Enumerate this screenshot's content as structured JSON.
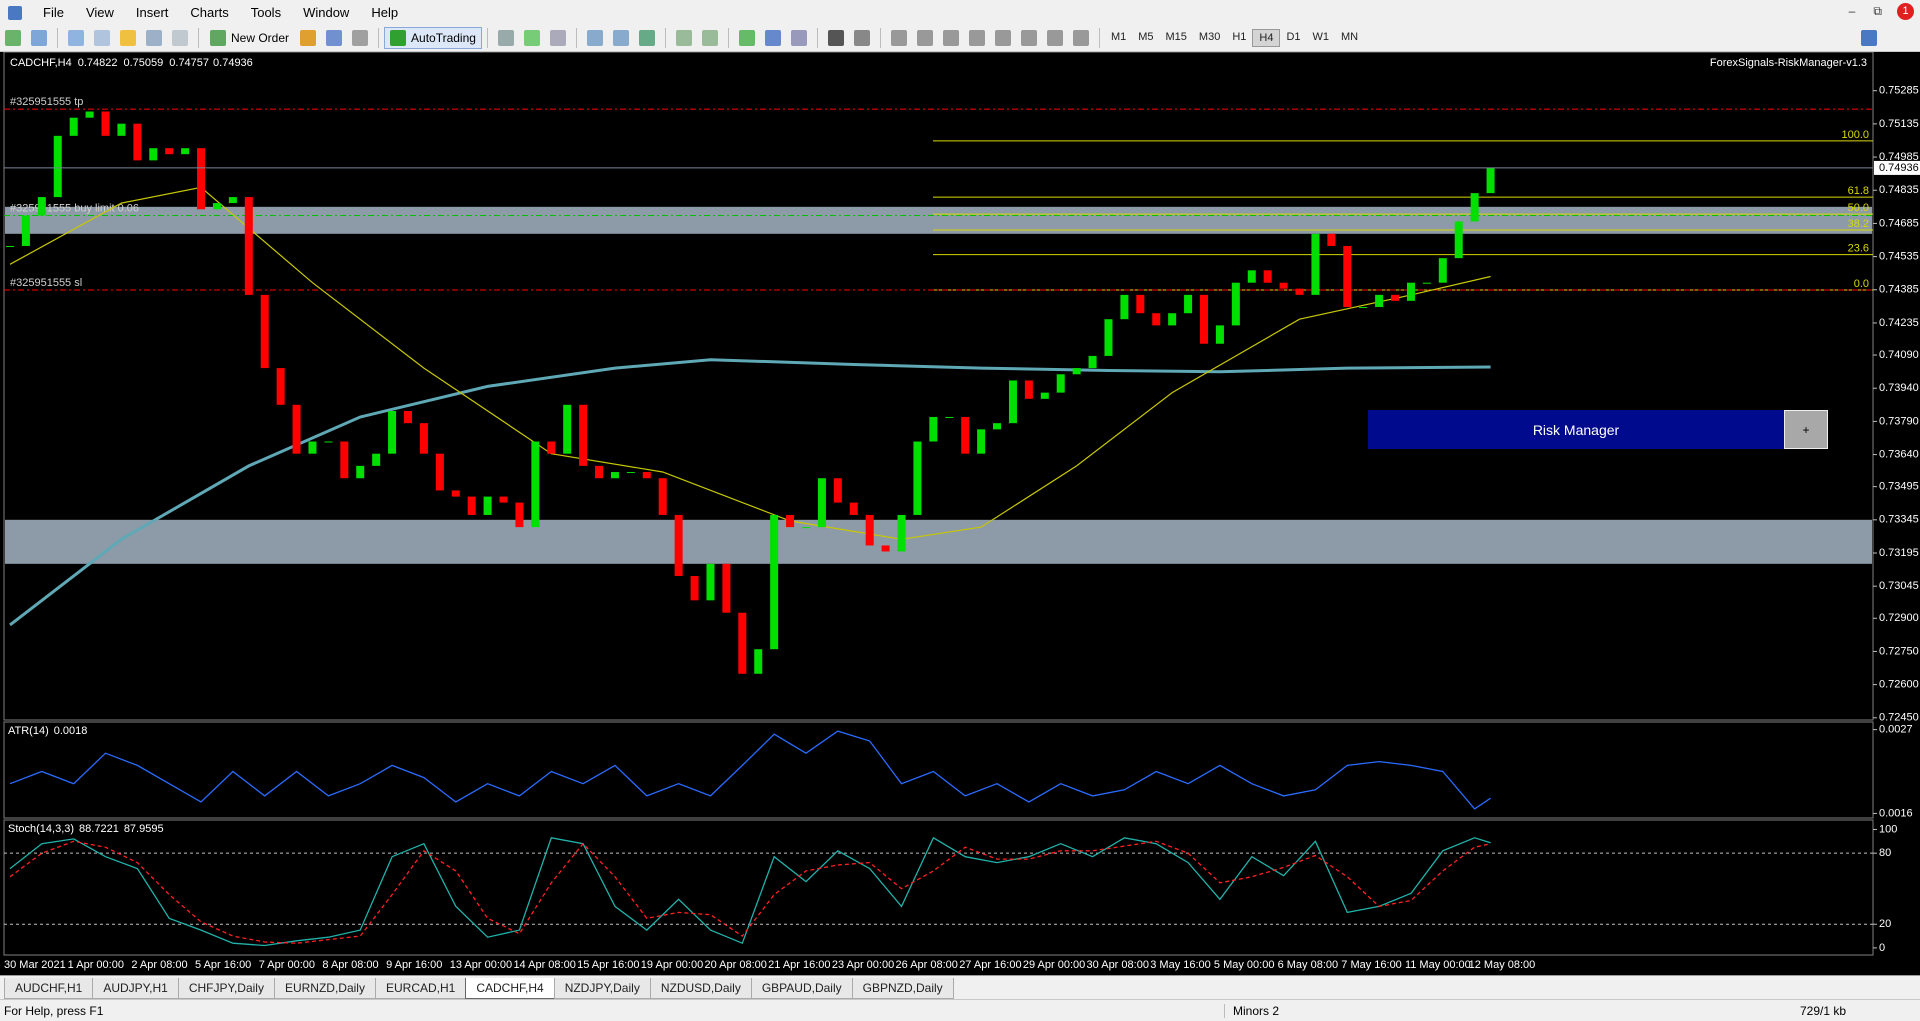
{
  "menu": [
    "File",
    "View",
    "Insert",
    "Charts",
    "Tools",
    "Window",
    "Help"
  ],
  "toolbar": {
    "new_order": "New Order",
    "autotrading": "AutoTrading",
    "timeframes": [
      "M1",
      "M5",
      "M15",
      "M30",
      "H1",
      "H4",
      "D1",
      "W1",
      "MN"
    ],
    "active_timeframe": 5
  },
  "notifications": 1,
  "risk_manager": {
    "title": "Risk Manager",
    "button": "+"
  },
  "chart_data": [
    {
      "type": "candlestick",
      "title": "CADCHF,H4",
      "quote": {
        "open": 0.74822,
        "high": 0.75059,
        "low": 0.74757
      },
      "indicator_name": "ForexSignals-RiskManager-v1.3",
      "up_color": "#00e000",
      "down_color": "#ff0000",
      "categories": [
        "30 Mar 2021",
        null,
        null,
        null,
        "1 Apr 00:00",
        null,
        null,
        null,
        "2 Apr 08:00",
        null,
        null,
        null,
        "5 Apr 16:00",
        null,
        null,
        null,
        "7 Apr 00:00",
        null,
        null,
        null,
        "8 Apr 08:00",
        null,
        null,
        null,
        "9 Apr 16:00",
        null,
        null,
        null,
        "13 Apr 00:00",
        null,
        null,
        null,
        "14 Apr 08:00",
        null,
        null,
        null,
        "15 Apr 16:00",
        null,
        null,
        null,
        "19 Apr 00:00",
        null,
        null,
        null,
        "20 Apr 08:00",
        null,
        null,
        null,
        "21 Apr 16:00",
        null,
        null,
        null,
        "23 Apr 00:00",
        null,
        null,
        null,
        "26 Apr 08:00",
        null,
        null,
        null,
        "27 Apr 16:00",
        null,
        null,
        null,
        "29 Apr 00:00",
        null,
        null,
        null,
        "30 Apr 08:00",
        null,
        null,
        null,
        "3 May 16:00",
        null,
        null,
        null,
        "5 May 00:00",
        null,
        null,
        null,
        "6 May 08:00",
        null,
        null,
        null,
        "7 May 16:00",
        null,
        null,
        null,
        "11 May 00:00",
        null,
        null,
        null,
        "12 May 08:00",
        null
      ],
      "values": [
        0.74583,
        0.74721,
        0.74804,
        0.75081,
        0.75163,
        0.75191,
        0.75081,
        0.75136,
        0.7497,
        0.75025,
        0.74998,
        0.75025,
        0.74749,
        0.74777,
        0.74804,
        0.74362,
        0.74031,
        0.73865,
        0.73644,
        0.73699,
        0.73699,
        0.73533,
        0.73589,
        0.73644,
        0.73837,
        0.73782,
        0.73644,
        0.73478,
        0.7345,
        0.73367,
        0.7345,
        0.73423,
        0.73312,
        0.73699,
        0.73644,
        0.73865,
        0.73589,
        0.73533,
        0.73561,
        0.73561,
        0.73533,
        0.73367,
        0.73091,
        0.72981,
        0.73146,
        0.72925,
        0.72649,
        0.7276,
        0.73367,
        0.73312,
        0.73312,
        0.73533,
        0.73423,
        0.73367,
        0.73229,
        0.73202,
        0.73367,
        0.73699,
        0.7381,
        0.7381,
        0.73644,
        0.73754,
        0.73782,
        0.73975,
        0.73892,
        0.7392,
        0.74003,
        0.74031,
        0.74086,
        0.74252,
        0.74362,
        0.74279,
        0.74224,
        0.74279,
        0.74362,
        0.74141,
        0.74224,
        0.74417,
        0.74473,
        0.74417,
        0.7439,
        0.74362,
        0.74638,
        0.74583,
        0.74307,
        0.74307,
        0.74362,
        0.74335,
        0.74417,
        0.74417,
        0.74528,
        0.74694,
        0.74822,
        0.74936
      ],
      "ylim": [
        0.7244,
        0.7546
      ],
      "yticks": [
        0.75285,
        0.75135,
        0.74985,
        0.74835,
        0.74685,
        0.74535,
        0.74385,
        0.74235,
        {
          "value": 0.7409,
          "label": "0.74090"
        },
        {
          "value": 0.7394,
          "label": "0.73940"
        },
        {
          "value": 0.7379,
          "label": "0.73790"
        },
        {
          "value": 0.7364,
          "label": "0.73640"
        },
        0.73495,
        0.73345,
        0.73195,
        0.73045,
        {
          "value": 0.729,
          "label": "0.72900"
        },
        {
          "value": 0.7275,
          "label": "0.72750"
        },
        {
          "value": 0.726,
          "label": "0.72600"
        },
        {
          "value": 0.7245,
          "label": "0.72450"
        }
      ],
      "moving_averages": [
        {
          "color": "#5fa8b5",
          "x": [
            0,
            7,
            15,
            22,
            30,
            38,
            44,
            53,
            61,
            69,
            76,
            84,
            93
          ],
          "values": [
            0.7287,
            0.73257,
            0.73589,
            0.7381,
            0.73948,
            0.74031,
            0.74069,
            0.74047,
            0.74031,
            0.7402,
            0.74014,
            0.74031,
            0.74036
          ]
        },
        {
          "color": "#c8c800",
          "x": [
            0,
            7,
            12,
            19,
            26,
            34,
            41,
            49,
            56,
            61,
            67,
            73,
            81,
            88,
            93
          ],
          "values": [
            0.745,
            0.74777,
            0.74848,
            0.74417,
            0.74031,
            0.73644,
            0.73561,
            0.7334,
            0.73257,
            0.73312,
            0.73589,
            0.7392,
            0.74252,
            0.74362,
            0.74445
          ]
        }
      ],
      "zones": [
        {
          "from": 0.74638,
          "to": 0.7476,
          "color": "#8d9aa8"
        },
        {
          "from": 0.73146,
          "to": 0.73345,
          "color": "#8d9aa8"
        }
      ],
      "levels": [
        {
          "label": "#325951555 tp",
          "value": 0.75202,
          "color": "#ff0000"
        },
        {
          "label": "#325951555 buy limit 0.06",
          "value": 0.74721,
          "color": "#00c000"
        },
        {
          "label": "#325951555 sl",
          "value": 0.74384,
          "color": "#ff0000"
        }
      ],
      "fibonacci": {
        "color": "#d8d800",
        "levels": [
          {
            "label": "100.0",
            "value": 0.75058
          },
          {
            "label": "61.8",
            "value": 0.74804
          },
          {
            "label": "50.0",
            "value": 0.74727
          },
          {
            "label": "38.2",
            "value": 0.74655
          },
          {
            "label": "23.6",
            "value": 0.74544
          },
          {
            "label": "0.0",
            "value": 0.74384
          }
        ]
      }
    },
    {
      "type": "line",
      "title": "ATR(14)",
      "ylim": [
        0.00154,
        0.0028
      ],
      "yticks": [
        0.0027,
        0.0016
      ],
      "x": [
        0,
        2,
        4,
        6,
        8,
        10,
        12,
        14,
        16,
        18,
        20,
        22,
        24,
        26,
        28,
        30,
        32,
        34,
        36,
        38,
        40,
        42,
        44,
        46,
        48,
        50,
        52,
        54,
        56,
        58,
        60,
        62,
        64,
        66,
        68,
        70,
        72,
        74,
        76,
        78,
        80,
        82,
        84,
        86,
        88,
        90,
        92,
        93
      ],
      "series": [
        {
          "color": "#2a6bff",
          "values": [
            0.00199,
            0.00215,
            0.00199,
            0.00239,
            0.00223,
            0.00199,
            0.00175,
            0.00215,
            0.00183,
            0.00215,
            0.00183,
            0.00199,
            0.00223,
            0.00207,
            0.00175,
            0.00199,
            0.00183,
            0.00215,
            0.00199,
            0.00223,
            0.00183,
            0.00199,
            0.00183,
            0.00223,
            0.00264,
            0.00239,
            0.00268,
            0.00255,
            0.00199,
            0.00215,
            0.00183,
            0.00199,
            0.00175,
            0.00199,
            0.00183,
            0.00191,
            0.00215,
            0.00199,
            0.00223,
            0.00199,
            0.00183,
            0.00191,
            0.00223,
            0.00228,
            0.00223,
            0.00215,
            0.00166,
            0.0018
          ]
        }
      ]
    },
    {
      "type": "line",
      "title": "Stoch(14,3,3)",
      "ylim": [
        -6,
        108
      ],
      "yticks": [
        100,
        80,
        20,
        0
      ],
      "levels": [
        80,
        20
      ],
      "x": [
        0,
        2,
        4,
        6,
        8,
        10,
        12,
        14,
        16,
        18,
        20,
        22,
        24,
        26,
        28,
        30,
        32,
        34,
        36,
        38,
        40,
        42,
        44,
        46,
        48,
        50,
        52,
        54,
        56,
        58,
        60,
        62,
        64,
        66,
        68,
        70,
        72,
        74,
        76,
        78,
        80,
        82,
        84,
        86,
        88,
        90,
        92,
        93
      ],
      "series": [
        {
          "color": "#20b2aa",
          "style": "solid",
          "values": [
            67,
            88,
            92,
            77,
            67,
            25,
            15,
            4,
            2,
            6,
            9,
            15,
            77,
            88,
            35,
            9,
            15,
            93,
            88,
            35,
            15,
            41,
            15,
            4,
            77,
            56,
            82,
            67,
            35,
            93,
            77,
            72,
            77,
            88,
            77,
            93,
            88,
            72,
            41,
            77,
            61,
            90,
            30,
            35,
            46,
            82,
            93,
            88.7221
          ]
        },
        {
          "color": "#ff2020",
          "style": "dashed",
          "values": [
            60,
            80,
            90,
            85,
            72,
            45,
            22,
            10,
            5,
            4,
            7,
            10,
            45,
            82,
            65,
            25,
            12,
            55,
            88,
            60,
            25,
            30,
            28,
            10,
            45,
            65,
            70,
            72,
            50,
            65,
            85,
            75,
            75,
            82,
            82,
            86,
            90,
            80,
            55,
            60,
            68,
            78,
            60,
            35,
            40,
            65,
            85,
            87.9595
          ]
        }
      ]
    }
  ],
  "tabs": {
    "items": [
      "AUDCHF,H1",
      "AUDJPY,H1",
      "CHFJPY,Daily",
      "EURNZD,Daily",
      "EURCAD,H1",
      "CADCHF,H4",
      "NZDJPY,Daily",
      "NZDUSD,Daily",
      "GBPAUD,Daily",
      "GBPNZD,Daily"
    ],
    "active": 5
  },
  "status": {
    "help": "For Help, press F1",
    "profile": "Minors 2",
    "traffic": "729/1 kb"
  }
}
